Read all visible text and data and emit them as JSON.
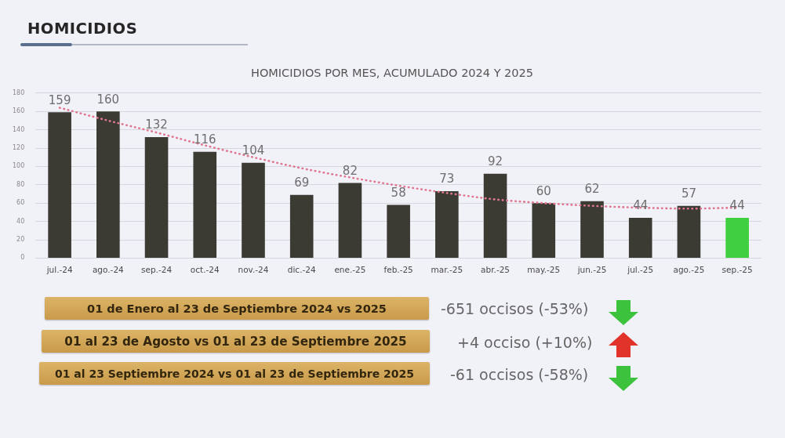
{
  "chart_data": {
    "type": "bar",
    "title": "HOMICIDIOS",
    "subtitle": "HOMICIDIOS POR MES, ACUMULADO 2024 Y 2025",
    "categories": [
      "jul.-24",
      "ago.-24",
      "sep.-24",
      "oct.-24",
      "nov.-24",
      "dic.-24",
      "ene.-25",
      "feb.-25",
      "mar.-25",
      "abr.-25",
      "may.-25",
      "jun.-25",
      "jul.-25",
      "ago.-25",
      "sep.-25"
    ],
    "series": [
      {
        "colors": [
          "#3b3b34",
          "#3b3b34",
          "#3b3b34",
          "#3b3b34",
          "#3b3b34",
          "#3b3b34",
          "#3b3b34",
          "#3b3b34",
          "#3b3b34",
          "#3b3b34",
          "#3b3b34",
          "#3b3b34",
          "#3b3b34",
          "#3b3b34",
          "#3fcf3f"
        ],
        "values": [
          159,
          160,
          132,
          116,
          104,
          69,
          82,
          58,
          73,
          92,
          60,
          62,
          44,
          57,
          44
        ],
        "value_labels": [
          "159",
          "160",
          "132",
          "116",
          "104",
          "69",
          "82",
          "58",
          "73",
          "92",
          "60",
          "62",
          "44",
          "57",
          "44"
        ]
      },
      {
        "type": "line",
        "color": "#e2758f",
        "values": [
          164,
          150,
          137,
          123,
          110,
          98,
          88,
          79,
          71,
          64,
          60,
          57,
          55,
          54,
          55
        ],
        "line_style": "dotted",
        "marker": "none"
      }
    ],
    "ylim": [
      0,
      180
    ],
    "yticks": [
      0,
      20,
      40,
      60,
      80,
      100,
      120,
      140,
      160,
      180
    ],
    "grid": "y",
    "legend": false,
    "annotations": [
      "01 de Enero al 23 de Septiembre 2024 vs 2025",
      "-651 occisos (-53%)",
      "01 al 23 de Agosto vs 01 al 23 de Septiembre 2025",
      "+4 occiso (+10%)",
      "01 al 23 Septiembre 2024 vs 01 al 23 de Septiembre 2025",
      "-61 occisos (-58%)"
    ]
  }
}
